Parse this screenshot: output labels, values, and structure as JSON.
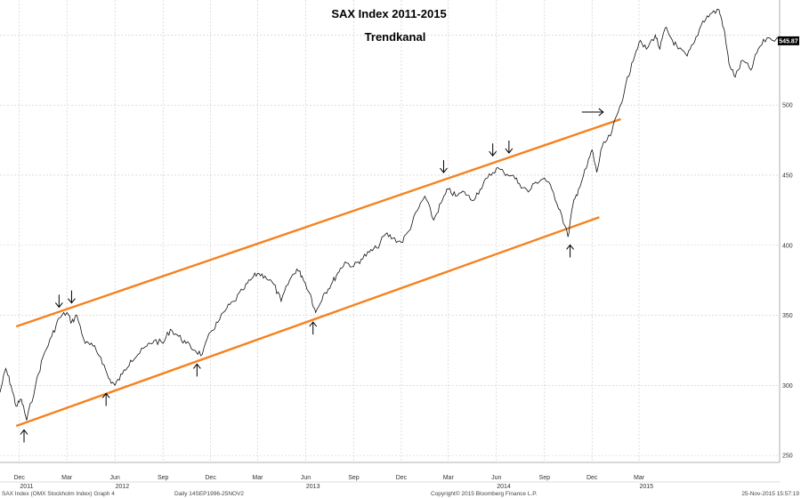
{
  "chart_data": {
    "type": "line",
    "title": "SAX Index 2011-2015",
    "subtitle": "Trendkanal",
    "xlabel": "",
    "ylabel": "",
    "x_range": [
      "2011-10-25",
      "2015-11-25"
    ],
    "ylim": [
      245,
      575
    ],
    "y_ticks": [
      250,
      300,
      350,
      400,
      450,
      500,
      550
    ],
    "y_tick_labels": [
      "250",
      "300",
      "350",
      "400",
      "450",
      "500",
      ""
    ],
    "month_ticks": [
      {
        "date": "2011-12-01",
        "label": "Dec"
      },
      {
        "date": "2012-03-01",
        "label": "Mar"
      },
      {
        "date": "2012-06-01",
        "label": "Jun"
      },
      {
        "date": "2012-09-01",
        "label": "Sep"
      },
      {
        "date": "2012-12-01",
        "label": "Dec"
      },
      {
        "date": "2013-03-01",
        "label": "Mar"
      },
      {
        "date": "2013-06-01",
        "label": "Jun"
      },
      {
        "date": "2013-09-01",
        "label": "Sep"
      },
      {
        "date": "2013-12-01",
        "label": "Dec"
      },
      {
        "date": "2014-03-01",
        "label": "Mar"
      },
      {
        "date": "2014-06-01",
        "label": "Jun"
      },
      {
        "date": "2014-09-01",
        "label": "Sep"
      },
      {
        "date": "2014-12-01",
        "label": "Dec"
      },
      {
        "date": "2015-03-01",
        "label": "Mar"
      }
    ],
    "year_ticks": [
      {
        "date": "2011-12-15",
        "label": "2011"
      },
      {
        "date": "2012-06-15",
        "label": "2012"
      },
      {
        "date": "2013-06-15",
        "label": "2013"
      },
      {
        "date": "2014-06-15",
        "label": "2014"
      },
      {
        "date": "2015-03-15",
        "label": "2015"
      }
    ],
    "grid": true,
    "series": [
      {
        "color": "#111111",
        "points": [
          [
            "2011-10-25",
            295
          ],
          [
            "2011-11-05",
            312
          ],
          [
            "2011-11-15",
            300
          ],
          [
            "2011-11-25",
            285
          ],
          [
            "2011-12-05",
            290
          ],
          [
            "2011-12-15",
            275
          ],
          [
            "2012-01-01",
            300
          ],
          [
            "2012-01-15",
            320
          ],
          [
            "2012-02-01",
            335
          ],
          [
            "2012-02-15",
            348
          ],
          [
            "2012-03-01",
            352
          ],
          [
            "2012-03-10",
            345
          ],
          [
            "2012-03-20",
            350
          ],
          [
            "2012-04-05",
            330
          ],
          [
            "2012-04-20",
            328
          ],
          [
            "2012-05-05",
            320
          ],
          [
            "2012-05-20",
            305
          ],
          [
            "2012-06-01",
            300
          ],
          [
            "2012-06-15",
            308
          ],
          [
            "2012-07-01",
            318
          ],
          [
            "2012-07-15",
            322
          ],
          [
            "2012-08-01",
            328
          ],
          [
            "2012-08-15",
            332
          ],
          [
            "2012-09-01",
            330
          ],
          [
            "2012-09-15",
            340
          ],
          [
            "2012-10-01",
            335
          ],
          [
            "2012-10-15",
            330
          ],
          [
            "2012-11-01",
            325
          ],
          [
            "2012-11-15",
            322
          ],
          [
            "2012-12-01",
            338
          ],
          [
            "2012-12-15",
            345
          ],
          [
            "2013-01-01",
            355
          ],
          [
            "2013-01-15",
            360
          ],
          [
            "2013-02-01",
            368
          ],
          [
            "2013-02-15",
            375
          ],
          [
            "2013-03-01",
            380
          ],
          [
            "2013-03-15",
            378
          ],
          [
            "2013-04-01",
            372
          ],
          [
            "2013-04-15",
            360
          ],
          [
            "2013-05-01",
            375
          ],
          [
            "2013-05-15",
            383
          ],
          [
            "2013-05-25",
            378
          ],
          [
            "2013-06-10",
            365
          ],
          [
            "2013-06-20",
            352
          ],
          [
            "2013-07-05",
            365
          ],
          [
            "2013-07-20",
            372
          ],
          [
            "2013-08-01",
            380
          ],
          [
            "2013-08-15",
            388
          ],
          [
            "2013-09-01",
            385
          ],
          [
            "2013-09-15",
            390
          ],
          [
            "2013-10-01",
            395
          ],
          [
            "2013-10-15",
            398
          ],
          [
            "2013-11-01",
            408
          ],
          [
            "2013-11-15",
            405
          ],
          [
            "2013-12-01",
            402
          ],
          [
            "2013-12-15",
            410
          ],
          [
            "2014-01-01",
            425
          ],
          [
            "2014-01-15",
            435
          ],
          [
            "2014-02-01",
            418
          ],
          [
            "2014-02-15",
            430
          ],
          [
            "2014-03-01",
            440
          ],
          [
            "2014-03-15",
            435
          ],
          [
            "2014-04-01",
            438
          ],
          [
            "2014-04-15",
            432
          ],
          [
            "2014-05-01",
            440
          ],
          [
            "2014-05-15",
            448
          ],
          [
            "2014-06-01",
            455
          ],
          [
            "2014-06-15",
            452
          ],
          [
            "2014-07-01",
            450
          ],
          [
            "2014-07-15",
            444
          ],
          [
            "2014-08-01",
            438
          ],
          [
            "2014-08-15",
            445
          ],
          [
            "2014-09-01",
            448
          ],
          [
            "2014-09-15",
            440
          ],
          [
            "2014-10-01",
            425
          ],
          [
            "2014-10-16",
            406
          ],
          [
            "2014-10-25",
            428
          ],
          [
            "2014-11-05",
            440
          ],
          [
            "2014-11-20",
            455
          ],
          [
            "2014-12-01",
            468
          ],
          [
            "2014-12-10",
            452
          ],
          [
            "2014-12-20",
            470
          ],
          [
            "2015-01-05",
            478
          ],
          [
            "2015-01-20",
            495
          ],
          [
            "2015-02-01",
            510
          ],
          [
            "2015-02-15",
            530
          ],
          [
            "2015-03-01",
            545
          ],
          [
            "2015-03-15",
            540
          ],
          [
            "2015-04-01",
            550
          ],
          [
            "2015-04-10",
            540
          ],
          [
            "2015-04-20",
            555
          ],
          [
            "2015-05-01",
            548
          ],
          [
            "2015-05-15",
            540
          ],
          [
            "2015-06-01",
            535
          ],
          [
            "2015-06-15",
            545
          ],
          [
            "2015-07-01",
            560
          ],
          [
            "2015-07-15",
            565
          ],
          [
            "2015-08-01",
            568
          ],
          [
            "2015-08-10",
            555
          ],
          [
            "2015-08-20",
            530
          ],
          [
            "2015-09-01",
            520
          ],
          [
            "2015-09-15",
            532
          ],
          [
            "2015-10-01",
            525
          ],
          [
            "2015-10-15",
            540
          ],
          [
            "2015-11-01",
            548
          ],
          [
            "2015-11-25",
            545.87
          ]
        ]
      }
    ],
    "trend_lines": [
      {
        "name": "upper",
        "color": "#f5821f",
        "from": [
          "2011-11-25",
          342
        ],
        "to": [
          "2015-01-25",
          490
        ]
      },
      {
        "name": "lower",
        "color": "#f5821f",
        "from": [
          "2011-11-25",
          271
        ],
        "to": [
          "2014-12-15",
          420
        ]
      }
    ],
    "annotations": [
      {
        "type": "arrow-up",
        "date": "2011-12-10",
        "value": 272
      },
      {
        "type": "arrow-up",
        "date": "2012-05-15",
        "value": 298
      },
      {
        "type": "arrow-up",
        "date": "2012-11-05",
        "value": 319
      },
      {
        "type": "arrow-up",
        "date": "2013-06-15",
        "value": 349
      },
      {
        "type": "arrow-up",
        "date": "2014-10-20",
        "value": 404
      },
      {
        "type": "arrow-down",
        "date": "2012-02-15",
        "value": 352
      },
      {
        "type": "arrow-down",
        "date": "2012-03-10",
        "value": 355
      },
      {
        "type": "arrow-down",
        "date": "2014-02-20",
        "value": 448
      },
      {
        "type": "arrow-down",
        "date": "2014-05-25",
        "value": 460
      },
      {
        "type": "arrow-down",
        "date": "2014-06-25",
        "value": 462
      },
      {
        "type": "arrow-right",
        "date": "2015-01-05",
        "value": 495
      }
    ],
    "last_value": "545.87"
  },
  "footer": {
    "left": "SAX Index (OMX Stockholm Index) Graph 4",
    "range": "Daily 14SEP1996-25NOV2",
    "copyright": "Copyright© 2015 Bloomberg Finance L.P.",
    "timestamp": "25-Nov-2015 15:57:19"
  }
}
